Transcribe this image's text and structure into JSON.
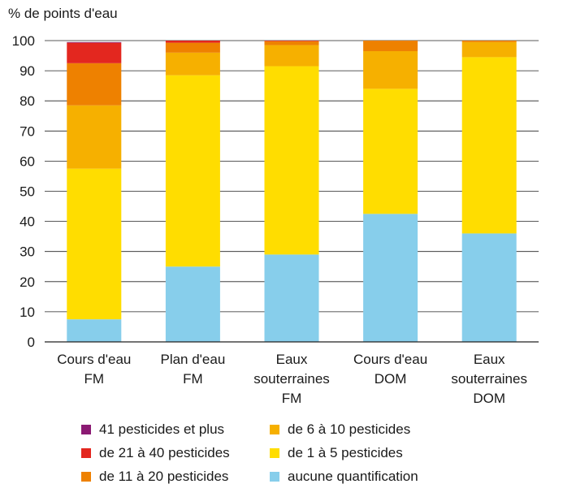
{
  "chart_data": {
    "type": "bar",
    "stacked": true,
    "ylabel": "% de points d'eau",
    "xlabel": "",
    "ylim": [
      0,
      100
    ],
    "yticks": [
      0,
      10,
      20,
      30,
      40,
      50,
      60,
      70,
      80,
      90,
      100
    ],
    "grid": true,
    "legend_position": "bottom",
    "categories": [
      [
        "Cours d'eau",
        "FM"
      ],
      [
        "Plan d'eau",
        "FM"
      ],
      [
        "Eaux",
        "souterraines",
        "FM"
      ],
      [
        "Cours d'eau",
        "DOM"
      ],
      [
        "Eaux",
        "souterraines",
        "DOM"
      ]
    ],
    "series": [
      {
        "name": "aucune quantification",
        "color": "#87CEEB",
        "values": [
          7.5,
          25.0,
          29.0,
          42.5,
          36.0
        ]
      },
      {
        "name": "de 1 à 5 pesticides",
        "color": "#FFDD00",
        "values": [
          50.0,
          63.5,
          62.5,
          41.5,
          58.5
        ]
      },
      {
        "name": "de 6 à 10 pesticides",
        "color": "#F6B000",
        "values": [
          21.0,
          7.5,
          7.0,
          12.5,
          5.0
        ]
      },
      {
        "name": "de 11 à 20 pesticides",
        "color": "#EE8100",
        "values": [
          14.0,
          3.3,
          1.3,
          3.5,
          0.5
        ]
      },
      {
        "name": "de 21 à 40 pesticides",
        "color": "#E3271F",
        "values": [
          6.8,
          0.7,
          0.2,
          0.0,
          0.0
        ]
      },
      {
        "name": "41 pesticides et plus",
        "color": "#8B1A73",
        "values": [
          0.2,
          0.0,
          0.0,
          0.0,
          0.0
        ]
      }
    ],
    "legend": {
      "left": [
        "41 pesticides et plus",
        "de 21 à 40 pesticides",
        "de 11 à 20 pesticides"
      ],
      "right": [
        "de 6 à 10 pesticides",
        "de 1 à 5 pesticides",
        "aucune quantification"
      ]
    }
  }
}
